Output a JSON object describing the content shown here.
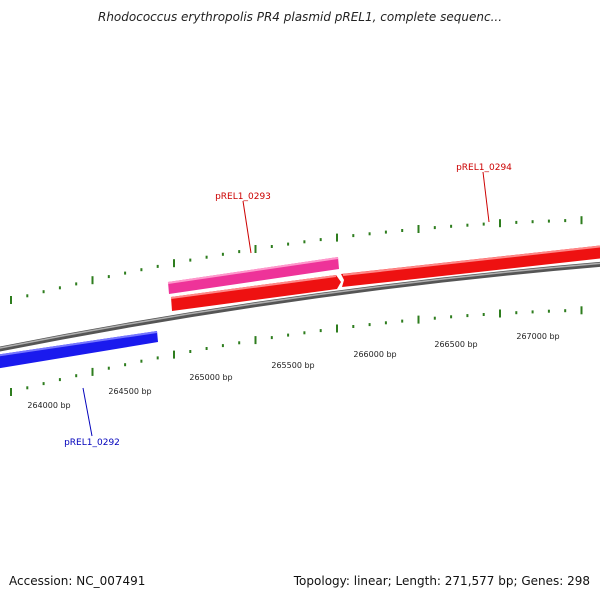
{
  "title": "Rhodococcus erythropolis PR4 plasmid pREL1, complete sequenc...",
  "footer": {
    "accession": "Accession: NC_007491",
    "summary": "Topology: linear; Length: 271,577 bp; Genes: 298"
  },
  "colors": {
    "backbone": "#8a8a8a",
    "ticks": "#2e7d1e",
    "gene_forward": "#ee1111",
    "gene_reverse": "#1a1aee",
    "gene_highlight": "#ee3399",
    "label_red": "#cc0000",
    "label_blue": "#0000bb"
  },
  "scale": {
    "tick_labels": [
      {
        "bp": 264000,
        "label": "264000 bp"
      },
      {
        "bp": 264500,
        "label": "264500 bp"
      },
      {
        "bp": 265000,
        "label": "265000 bp"
      },
      {
        "bp": 265500,
        "label": "265500 bp"
      },
      {
        "bp": 266000,
        "label": "266000 bp"
      },
      {
        "bp": 266500,
        "label": "266500 bp"
      },
      {
        "bp": 267000,
        "label": "267000 bp"
      }
    ]
  },
  "genes": [
    {
      "id": "pREL1_0292",
      "label": "pREL1_0292",
      "strand": "reverse",
      "color_key": "gene_reverse"
    },
    {
      "id": "pREL1_0293",
      "label": "pREL1_0293",
      "strand": "forward",
      "color_key": "gene_forward"
    },
    {
      "id": "pREL1_0294",
      "label": "pREL1_0294",
      "strand": "forward",
      "color_key": "gene_forward"
    }
  ]
}
